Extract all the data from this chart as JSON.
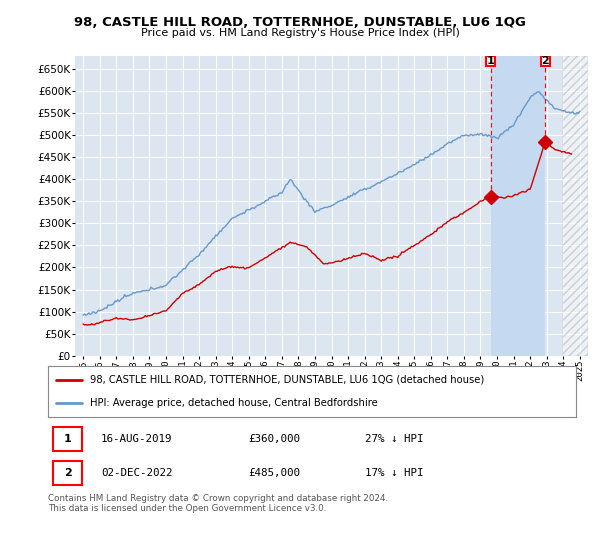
{
  "title": "98, CASTLE HILL ROAD, TOTTERNHOE, DUNSTABLE, LU6 1QG",
  "subtitle": "Price paid vs. HM Land Registry's House Price Index (HPI)",
  "red_label": "98, CASTLE HILL ROAD, TOTTERNHOE, DUNSTABLE, LU6 1QG (detached house)",
  "blue_label": "HPI: Average price, detached house, Central Bedfordshire",
  "point1_date": "16-AUG-2019",
  "point1_price": "£360,000",
  "point1_hpi": "27% ↓ HPI",
  "point2_date": "02-DEC-2022",
  "point2_price": "£485,000",
  "point2_hpi": "17% ↓ HPI",
  "footer": "Contains HM Land Registry data © Crown copyright and database right 2024.\nThis data is licensed under the Open Government Licence v3.0.",
  "ylim_min": 0,
  "ylim_max": 680000,
  "yticks": [
    0,
    50000,
    100000,
    150000,
    200000,
    250000,
    300000,
    350000,
    400000,
    450000,
    500000,
    550000,
    600000,
    650000
  ],
  "xlim_min": 1994.5,
  "xlim_max": 2025.5,
  "plot_bg_color": "#dce6f1",
  "highlight_color": "#c5d9f1",
  "line_color_red": "#cc0000",
  "line_color_blue": "#6699cc",
  "grid_color": "#ffffff",
  "point1_x": 2019.625,
  "point1_y": 360000,
  "point2_x": 2022.917,
  "point2_y": 485000
}
